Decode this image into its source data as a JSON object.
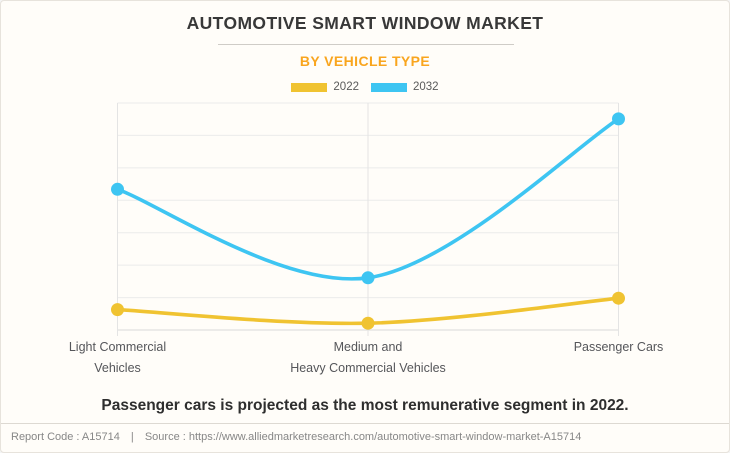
{
  "header": {
    "title": "AUTOMOTIVE SMART WINDOW MARKET",
    "subtitle": "BY VEHICLE TYPE"
  },
  "chart_data": {
    "type": "line",
    "categories": [
      "Light Commercial Vehicles",
      "Medium and Heavy Commercial Vehicles",
      "Passenger Cars"
    ],
    "categories_display": [
      "Light Commercial\nVehicles",
      "Medium and\nHeavy Commercial Vehicles",
      "Passenger Cars"
    ],
    "series": [
      {
        "name": "2022",
        "color": "#F0C331",
        "values": [
          9,
          3,
          14
        ]
      },
      {
        "name": "2032",
        "color": "#3EC5F2",
        "values": [
          62,
          23,
          93
        ]
      }
    ],
    "ylim": [
      0,
      100
    ],
    "y_axis_labels_visible": false,
    "grid": true,
    "legend_position": "top",
    "curve": "spline"
  },
  "remark": "Passenger cars is projected as the most remunerative segment in 2022.",
  "footer": {
    "report_code": "Report Code : A15714",
    "separator": "|",
    "source": "Source : https://www.alliedmarketresearch.com/automotive-smart-window-market-A15714"
  },
  "colors": {
    "accent_orange": "#F9A51E",
    "title_text": "#383838",
    "gridline": "#EBEBEB",
    "axis_line": "#D9D9D9"
  }
}
